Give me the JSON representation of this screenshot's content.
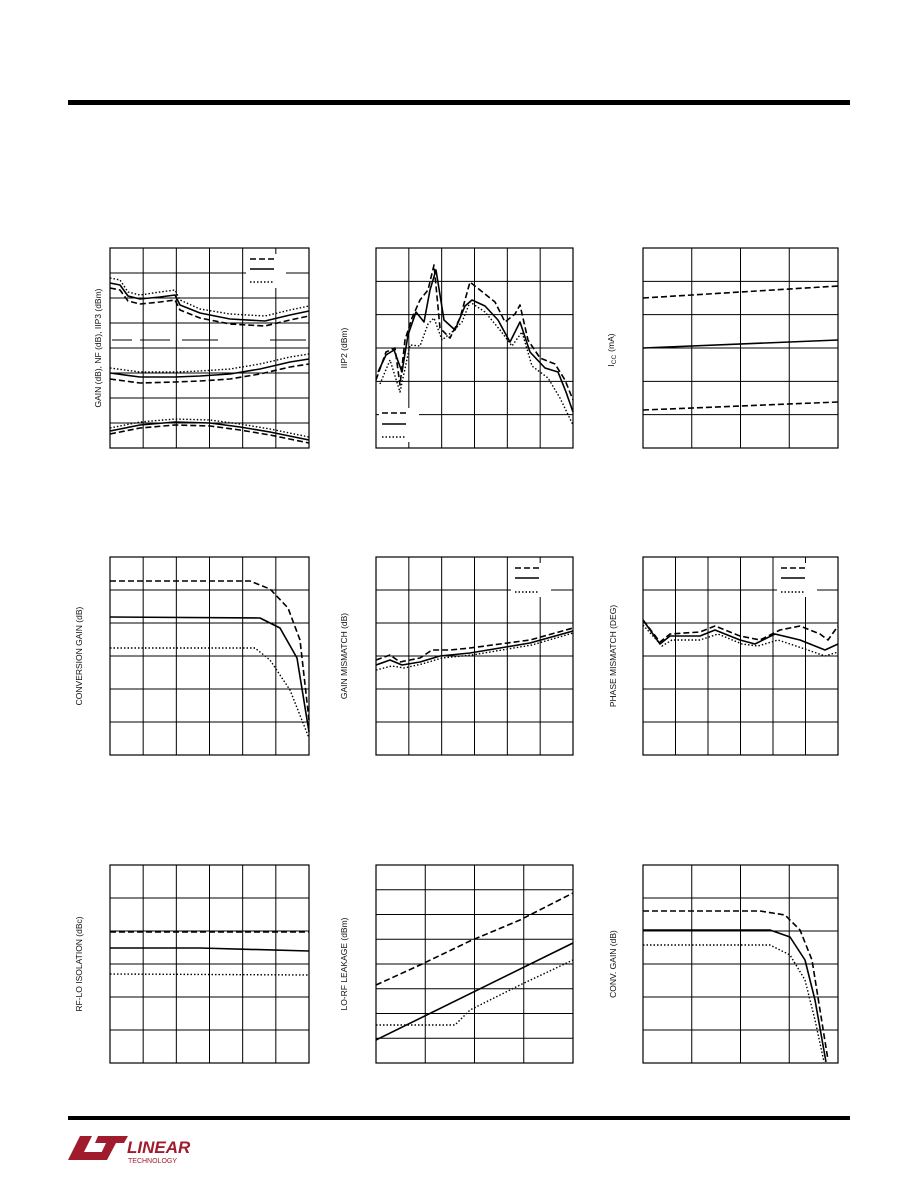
{
  "axis_labels": [
    "GAIN (dB), NF (dB), IIP3 (dBm)",
    "IIP2 (dBm)",
    {
      "main": "I",
      "sub": "CC",
      "unit": "(mA)"
    },
    "CONVERSION GAIN (dB)",
    "GAIN MISMATCH (dB)",
    "PHASE MISMATCH (DEG)",
    "RF-LO ISOLATION (dBc)",
    "LO-RF LEAKAGE (dBm)",
    "CONV. GAIN (dB)"
  ],
  "logo": {
    "word": "LINEAR",
    "sub": "TECHNOLOGY"
  }
}
